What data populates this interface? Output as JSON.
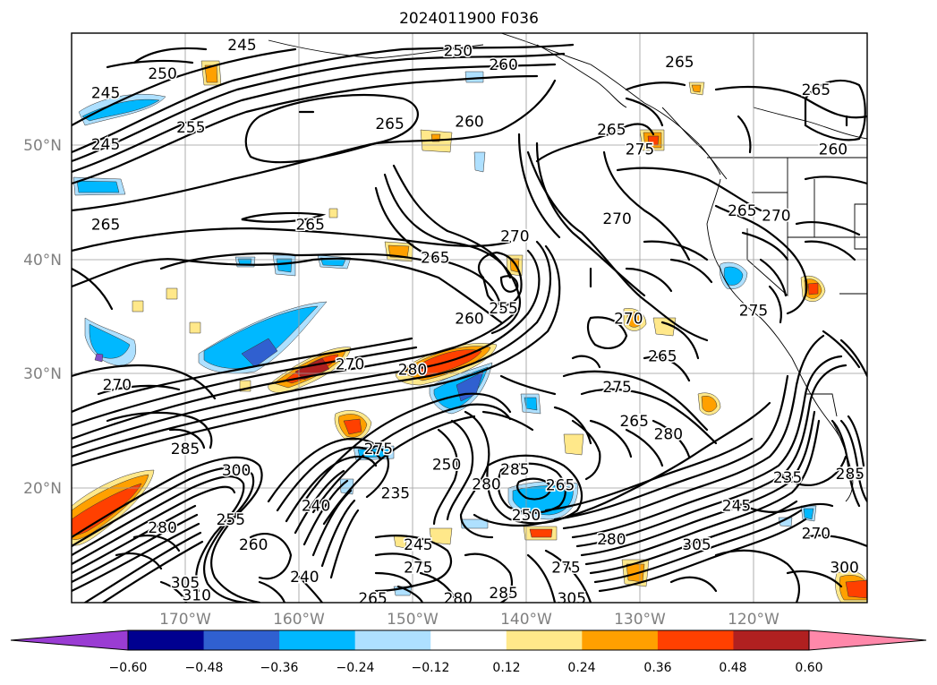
{
  "title": "2024011900 F036",
  "map": {
    "lat_ticks": [
      "50°N",
      "40°N",
      "30°N",
      "20°N"
    ],
    "lon_ticks": [
      "170°W",
      "160°W",
      "150°W",
      "140°W",
      "130°W",
      "120°W"
    ],
    "extent": {
      "lon_min": -178.5,
      "lon_max": -108.5,
      "lat_min": 10,
      "lat_max": 59.8
    },
    "contour_labels": [
      {
        "text": "245",
        "lon": -163.5,
        "lat": 58.7
      },
      {
        "text": "250",
        "lon": -144.5,
        "lat": 58.2
      },
      {
        "text": "250",
        "lon": -170.5,
        "lat": 56.2
      },
      {
        "text": "260",
        "lon": -140.5,
        "lat": 57.0
      },
      {
        "text": "265",
        "lon": -125.0,
        "lat": 57.2
      },
      {
        "text": "265",
        "lon": -113.0,
        "lat": 54.8
      },
      {
        "text": "245",
        "lon": -175.5,
        "lat": 54.5
      },
      {
        "text": "255",
        "lon": -168.0,
        "lat": 51.5
      },
      {
        "text": "245",
        "lon": -175.5,
        "lat": 50.0
      },
      {
        "text": "265",
        "lon": -150.5,
        "lat": 51.8
      },
      {
        "text": "260",
        "lon": -143.5,
        "lat": 52.0
      },
      {
        "text": "265",
        "lon": -131.0,
        "lat": 51.3
      },
      {
        "text": "275",
        "lon": -128.5,
        "lat": 49.6
      },
      {
        "text": "260",
        "lon": -111.5,
        "lat": 49.6
      },
      {
        "text": "265",
        "lon": -175.5,
        "lat": 43.0
      },
      {
        "text": "265",
        "lon": -157.5,
        "lat": 43.0
      },
      {
        "text": "270",
        "lon": -130.5,
        "lat": 43.5
      },
      {
        "text": "265",
        "lon": -119.5,
        "lat": 44.2
      },
      {
        "text": "270",
        "lon": -116.5,
        "lat": 43.8
      },
      {
        "text": "270",
        "lon": -139.5,
        "lat": 42.0
      },
      {
        "text": "265",
        "lon": -146.5,
        "lat": 40.1
      },
      {
        "text": "255",
        "lon": -140.5,
        "lat": 35.7
      },
      {
        "text": "260",
        "lon": -143.5,
        "lat": 34.8
      },
      {
        "text": "270",
        "lon": -129.5,
        "lat": 34.8
      },
      {
        "text": "275",
        "lon": -118.5,
        "lat": 35.5
      },
      {
        "text": "265",
        "lon": -126.5,
        "lat": 31.5
      },
      {
        "text": "270",
        "lon": -154.0,
        "lat": 30.8
      },
      {
        "text": "280",
        "lon": -148.5,
        "lat": 30.3
      },
      {
        "text": "270",
        "lon": -174.5,
        "lat": 29.0
      },
      {
        "text": "275",
        "lon": -130.5,
        "lat": 28.8
      },
      {
        "text": "265",
        "lon": -129.0,
        "lat": 25.8
      },
      {
        "text": "280",
        "lon": -126.0,
        "lat": 24.7
      },
      {
        "text": "285",
        "lon": -168.5,
        "lat": 23.4
      },
      {
        "text": "275",
        "lon": -151.5,
        "lat": 23.4
      },
      {
        "text": "250",
        "lon": -145.5,
        "lat": 22.0
      },
      {
        "text": "300",
        "lon": -164.0,
        "lat": 21.5
      },
      {
        "text": "285",
        "lon": -139.5,
        "lat": 21.6
      },
      {
        "text": "280",
        "lon": -142.0,
        "lat": 20.3
      },
      {
        "text": "265",
        "lon": -135.5,
        "lat": 20.2
      },
      {
        "text": "235",
        "lon": -150.0,
        "lat": 19.5
      },
      {
        "text": "240",
        "lon": -157.0,
        "lat": 18.4
      },
      {
        "text": "235",
        "lon": -115.5,
        "lat": 20.9
      },
      {
        "text": "285",
        "lon": -110.0,
        "lat": 21.2
      },
      {
        "text": "245",
        "lon": -120.0,
        "lat": 18.4
      },
      {
        "text": "250",
        "lon": -138.5,
        "lat": 17.6
      },
      {
        "text": "280",
        "lon": -170.5,
        "lat": 16.5
      },
      {
        "text": "255",
        "lon": -164.5,
        "lat": 17.2
      },
      {
        "text": "270",
        "lon": -113.0,
        "lat": 16.0
      },
      {
        "text": "260",
        "lon": -162.5,
        "lat": 15.0
      },
      {
        "text": "245",
        "lon": -148.0,
        "lat": 15.0
      },
      {
        "text": "305",
        "lon": -123.5,
        "lat": 15.0
      },
      {
        "text": "280",
        "lon": -131.0,
        "lat": 15.5
      },
      {
        "text": "275",
        "lon": -148.0,
        "lat": 13.0
      },
      {
        "text": "275",
        "lon": -135.0,
        "lat": 13.0
      },
      {
        "text": "300",
        "lon": -110.5,
        "lat": 13.0
      },
      {
        "text": "240",
        "lon": -158.0,
        "lat": 12.2
      },
      {
        "text": "305",
        "lon": -168.5,
        "lat": 11.7
      },
      {
        "text": "310",
        "lon": -167.5,
        "lat": 10.6
      },
      {
        "text": "265",
        "lon": -152.0,
        "lat": 10.3
      },
      {
        "text": "280",
        "lon": -144.5,
        "lat": 10.3
      },
      {
        "text": "285",
        "lon": -140.5,
        "lat": 10.8
      },
      {
        "text": "305",
        "lon": -134.5,
        "lat": 10.3
      }
    ]
  },
  "colorbar": {
    "ticks": [
      "−0.60",
      "−0.48",
      "−0.36",
      "−0.24",
      "−0.12",
      "0.12",
      "0.24",
      "0.36",
      "0.48",
      "0.60"
    ],
    "colors": [
      "#9a3cd3",
      "#000090",
      "#3060d0",
      "#00b8ff",
      "#aee0ff",
      "#ffffff",
      "#ffe88a",
      "#ffa000",
      "#ff4000",
      "#b02020",
      "#ff88aa"
    ]
  }
}
